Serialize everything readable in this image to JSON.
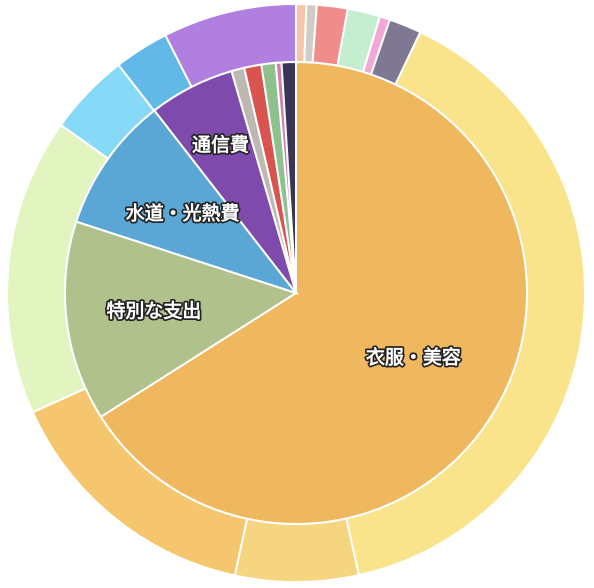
{
  "chart_data": {
    "type": "pie",
    "inner": {
      "slices": [
        {
          "name": "衣服・美容",
          "value": 66.0,
          "color": "#f0b85e",
          "label": "衣服・美容"
        },
        {
          "name": "特別な支出",
          "value": 14.0,
          "color": "#b1c18b",
          "label": "特別な支出"
        },
        {
          "name": "水道・光熱費",
          "value": 9.5,
          "color": "#5aa6d5",
          "label": "水道・光熱費"
        },
        {
          "name": "通信費",
          "value": 6.0,
          "color": "#7e4bad",
          "label": "通信費"
        },
        {
          "name": "",
          "value": 0.9,
          "color": "#bdb8b2"
        },
        {
          "name": "",
          "value": 1.2,
          "color": "#d9534f"
        },
        {
          "name": "",
          "value": 1.0,
          "color": "#8fc18f"
        },
        {
          "name": "",
          "value": 0.4,
          "color": "#d27fb0"
        },
        {
          "name": "",
          "value": 1.0,
          "color": "#3a3555"
        }
      ]
    },
    "outer": {
      "slices": [
        {
          "value": 0.6,
          "color": "#f5c7a8"
        },
        {
          "value": 0.6,
          "color": "#d0ccc6"
        },
        {
          "value": 1.8,
          "color": "#f08d8b"
        },
        {
          "value": 1.9,
          "color": "#c5edcf"
        },
        {
          "value": 0.6,
          "color": "#f2a7d7"
        },
        {
          "value": 1.9,
          "color": "#7f7893"
        },
        {
          "value": 41.2,
          "color": "#f9e38b"
        },
        {
          "value": 7.2,
          "color": "#f6d581"
        },
        {
          "value": 15.5,
          "color": "#f6c66e"
        },
        {
          "value": 17.4,
          "color": "#e2f4bf"
        },
        {
          "value": 4.8,
          "color": "#86d9f7"
        },
        {
          "value": 3.2,
          "color": "#62b9e8"
        },
        {
          "value": 7.8,
          "color": "#b07fe0"
        }
      ]
    }
  }
}
